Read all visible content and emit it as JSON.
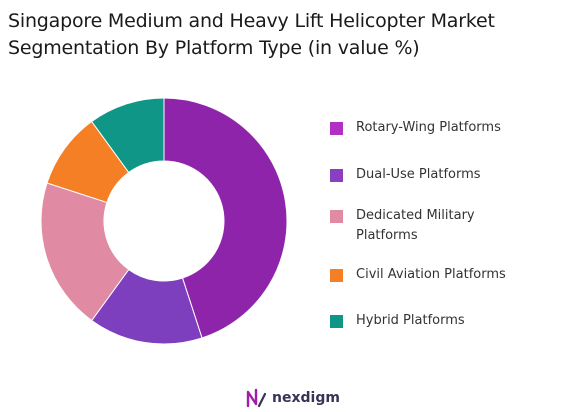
{
  "title_lines": [
    "Singapore Medium and Heavy Lift Helicopter Market",
    "Segmentation By Platform Type (in value %)"
  ],
  "chart_data": {
    "type": "pie",
    "title": "Singapore Medium and Heavy Lift Helicopter Market Segmentation By Platform Type (in value %)",
    "categories": [
      "Rotary-Wing Platforms",
      "Dual-Use Platforms",
      "Dedicated Military Platforms",
      "Civil Aviation Platforms",
      "Hybrid Platforms"
    ],
    "values": [
      45,
      15,
      20,
      10,
      10
    ],
    "colors": [
      "#8e24aa",
      "#7e3fbf",
      "#e08aa3",
      "#f57f24",
      "#0f9686"
    ],
    "legend_position": "right",
    "donut": true
  },
  "legend": [
    {
      "label": "Rotary-Wing Platforms",
      "color": "#b22fc4"
    },
    {
      "label": "Dual-Use Platforms",
      "color": "#8a3fc0"
    },
    {
      "label": "Dedicated Military Platforms",
      "color": "#e08aa3"
    },
    {
      "label": "Civil Aviation Platforms",
      "color": "#f57f24"
    },
    {
      "label": "Hybrid Platforms",
      "color": "#0f9686"
    }
  ],
  "brand": {
    "name": "nexdigm"
  }
}
